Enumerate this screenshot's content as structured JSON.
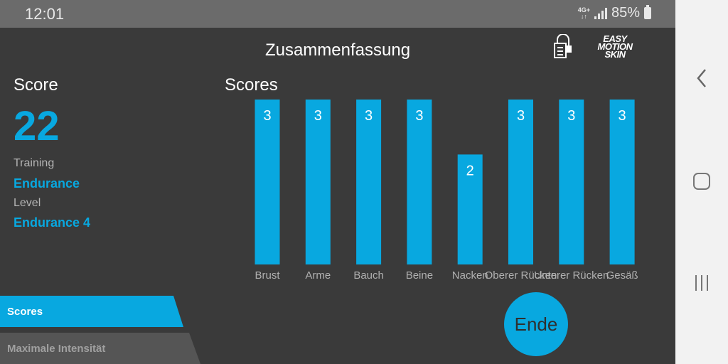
{
  "status_bar": {
    "time": "12:01",
    "network": [
      "4G+",
      "↓↑"
    ],
    "battery": "85%"
  },
  "header": {
    "title": "Zusammenfassung",
    "logo_lines": [
      "EASY",
      "MOTION",
      "SKIN"
    ]
  },
  "summary": {
    "score_label": "Score",
    "score_value": "22",
    "training_label": "Training",
    "training_value": "Endurance",
    "level_label": "Level",
    "level_value": "Endurance 4"
  },
  "tabs": [
    {
      "label": "Scores",
      "active": true
    },
    {
      "label": "Maximale Intensität",
      "active": false
    }
  ],
  "end_button": "Ende",
  "colors": {
    "accent": "#08a8e0",
    "background": "#3a3a3a",
    "status_bar": "#6b6b6b"
  },
  "chart_data": {
    "type": "bar",
    "title": "Scores",
    "categories": [
      "Brust",
      "Arme",
      "Bauch",
      "Beine",
      "Nacken",
      "Oberer Rücken",
      "Unterer Rücken",
      "Gesäß"
    ],
    "values": [
      3,
      3,
      3,
      3,
      2,
      3,
      3,
      3
    ],
    "ylim": [
      0,
      3
    ],
    "data_labels": true,
    "grid": false,
    "color": "#08a8e0"
  }
}
